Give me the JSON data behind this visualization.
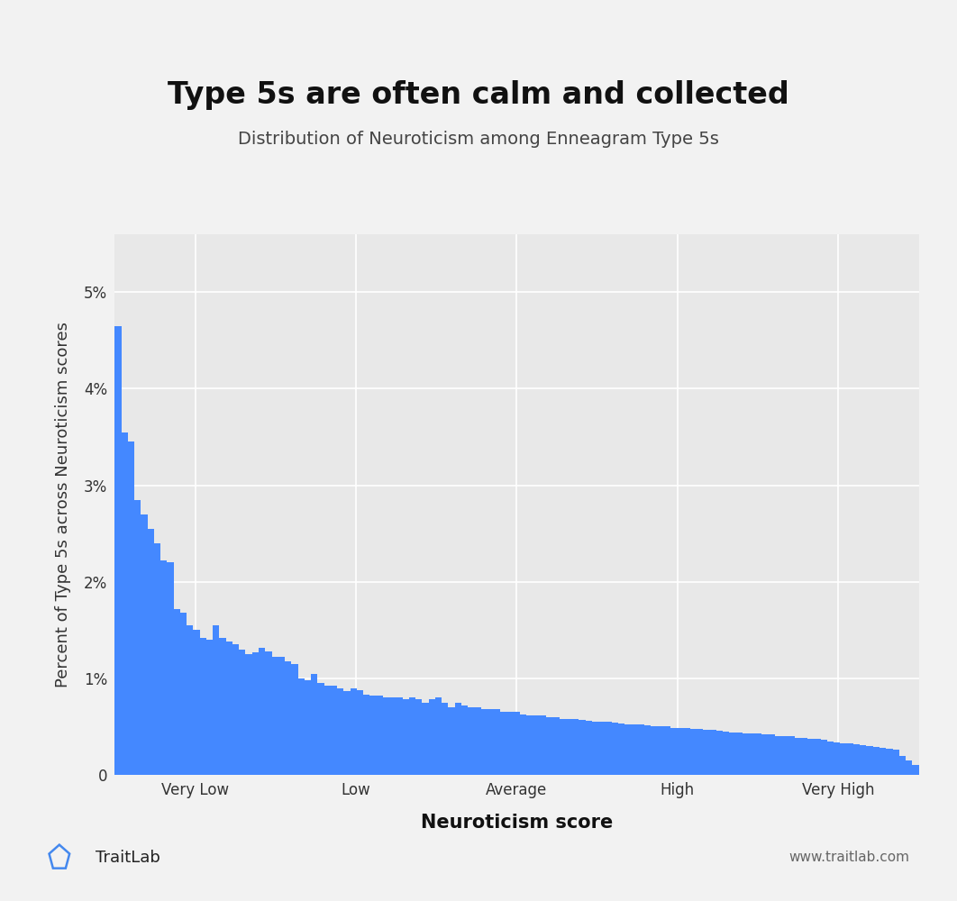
{
  "title": "Type 5s are often calm and collected",
  "subtitle": "Distribution of Neuroticism among Enneagram Type 5s",
  "xlabel": "Neuroticism score",
  "ylabel": "Percent of Type 5s across Neuroticism scores",
  "bar_color": "#4488ff",
  "background_color": "#f2f2f2",
  "plot_bg_color": "#e8e8e8",
  "title_fontsize": 24,
  "subtitle_fontsize": 14,
  "xlabel_fontsize": 15,
  "ylabel_fontsize": 13,
  "xtick_labels": [
    "Very Low",
    "Low",
    "Average",
    "High",
    "Very High"
  ],
  "xtick_positions": [
    0.1,
    0.3,
    0.5,
    0.7,
    0.9
  ],
  "ytick_labels": [
    "0",
    "1%",
    "2%",
    "3%",
    "4%",
    "5%"
  ],
  "ytick_values": [
    0.0,
    0.01,
    0.02,
    0.03,
    0.04,
    0.05
  ],
  "ylim": [
    0,
    0.056
  ],
  "bar_heights": [
    4.65,
    3.55,
    3.45,
    2.85,
    2.7,
    2.55,
    2.4,
    2.22,
    2.2,
    1.72,
    1.68,
    1.55,
    1.5,
    1.42,
    1.4,
    1.55,
    1.42,
    1.38,
    1.35,
    1.3,
    1.25,
    1.27,
    1.32,
    1.28,
    1.22,
    1.22,
    1.18,
    1.15,
    1.0,
    0.98,
    1.05,
    0.95,
    0.92,
    0.92,
    0.9,
    0.87,
    0.9,
    0.88,
    0.83,
    0.82,
    0.82,
    0.8,
    0.8,
    0.8,
    0.78,
    0.8,
    0.78,
    0.75,
    0.78,
    0.8,
    0.75,
    0.7,
    0.75,
    0.72,
    0.7,
    0.7,
    0.68,
    0.68,
    0.68,
    0.65,
    0.65,
    0.65,
    0.63,
    0.62,
    0.62,
    0.62,
    0.6,
    0.6,
    0.58,
    0.58,
    0.58,
    0.57,
    0.56,
    0.55,
    0.55,
    0.55,
    0.54,
    0.53,
    0.52,
    0.52,
    0.52,
    0.51,
    0.5,
    0.5,
    0.5,
    0.49,
    0.49,
    0.49,
    0.48,
    0.48,
    0.47,
    0.47,
    0.46,
    0.45,
    0.44,
    0.44,
    0.43,
    0.43,
    0.43,
    0.42,
    0.42,
    0.4,
    0.4,
    0.4,
    0.38,
    0.38,
    0.37,
    0.37,
    0.36,
    0.35,
    0.34,
    0.33,
    0.33,
    0.32,
    0.31,
    0.3,
    0.29,
    0.28,
    0.27,
    0.26,
    0.2,
    0.15,
    0.1
  ],
  "footer_logo_text": "TraitLab",
  "footer_url_text": "www.traitlab.com"
}
